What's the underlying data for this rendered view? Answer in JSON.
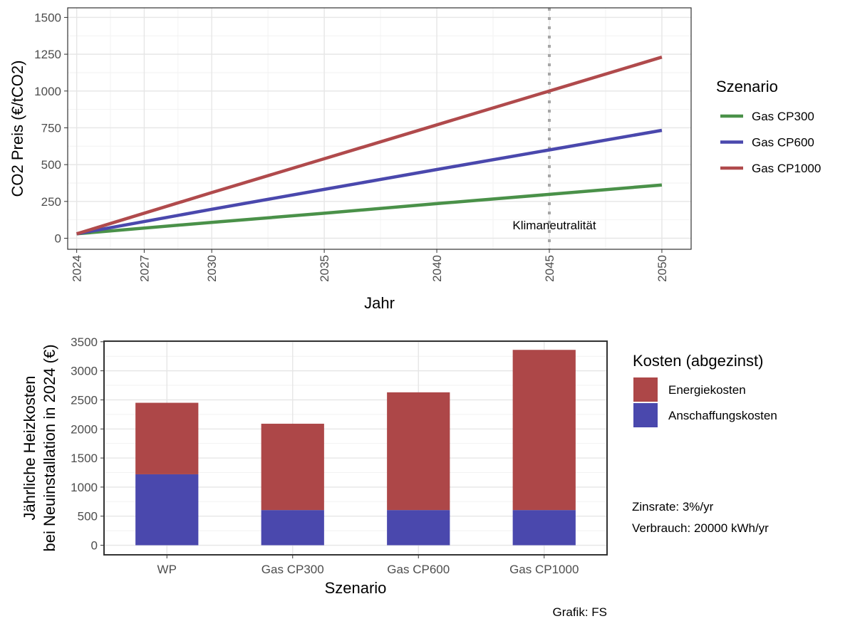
{
  "chart_data": [
    {
      "type": "line",
      "xlabel": "Jahr",
      "ylabel": "CO2 Preis (€/tCO2)",
      "xlim": [
        2023.6,
        2051.3
      ],
      "ylim": [
        -75,
        1565
      ],
      "x_ticks": [
        2024,
        2027,
        2030,
        2035,
        2040,
        2045,
        2050
      ],
      "y_ticks": [
        0,
        250,
        500,
        750,
        1000,
        1250,
        1500
      ],
      "grid": true,
      "legend": {
        "title": "Szenario",
        "position": "right"
      },
      "series": [
        {
          "name": "Gas CP300",
          "color": "#4a9149",
          "x": [
            2024,
            2030,
            2035,
            2040,
            2045,
            2050
          ],
          "y": [
            30,
            108,
            170,
            235,
            298,
            362
          ]
        },
        {
          "name": "Gas CP600",
          "color": "#4a48ad",
          "x": [
            2024,
            2030,
            2035,
            2040,
            2045,
            2050
          ],
          "y": [
            30,
            197,
            332,
            467,
            600,
            733
          ]
        },
        {
          "name": "Gas CP1000",
          "color": "#b04a4c",
          "x": [
            2024,
            2030,
            2035,
            2040,
            2045,
            2050
          ],
          "y": [
            30,
            310,
            540,
            770,
            1000,
            1230
          ]
        }
      ],
      "vline": {
        "x": 2045,
        "color": "#a6a6a6",
        "label": "Klimaneutralität"
      }
    },
    {
      "type": "bar",
      "stacked": true,
      "xlabel": "Szenario",
      "ylabel_lines": [
        "Jährliche Heizkosten",
        "bei Neuinstallation in 2024 (€)"
      ],
      "ylim": [
        -165,
        3510
      ],
      "y_ticks": [
        0,
        500,
        1000,
        1500,
        2000,
        2500,
        3000,
        3500
      ],
      "grid": true,
      "categories": [
        "WP",
        "Gas CP300",
        "Gas CP600",
        "Gas CP1000"
      ],
      "legend": {
        "title": "Kosten (abgezinst)",
        "position": "right"
      },
      "series": [
        {
          "name": "Anschaffungskosten",
          "color": "#4a48ad",
          "values": [
            1220,
            605,
            605,
            605
          ]
        },
        {
          "name": "Energiekosten",
          "color": "#ad4748",
          "values": [
            1230,
            1485,
            2025,
            2755
          ]
        }
      ],
      "legend_order": [
        "Energiekosten",
        "Anschaffungskosten"
      ]
    }
  ],
  "notes": [
    "Zinsrate: 3%/yr",
    "Verbrauch: 20000 kWh/yr"
  ],
  "caption": "Grafik: FS"
}
